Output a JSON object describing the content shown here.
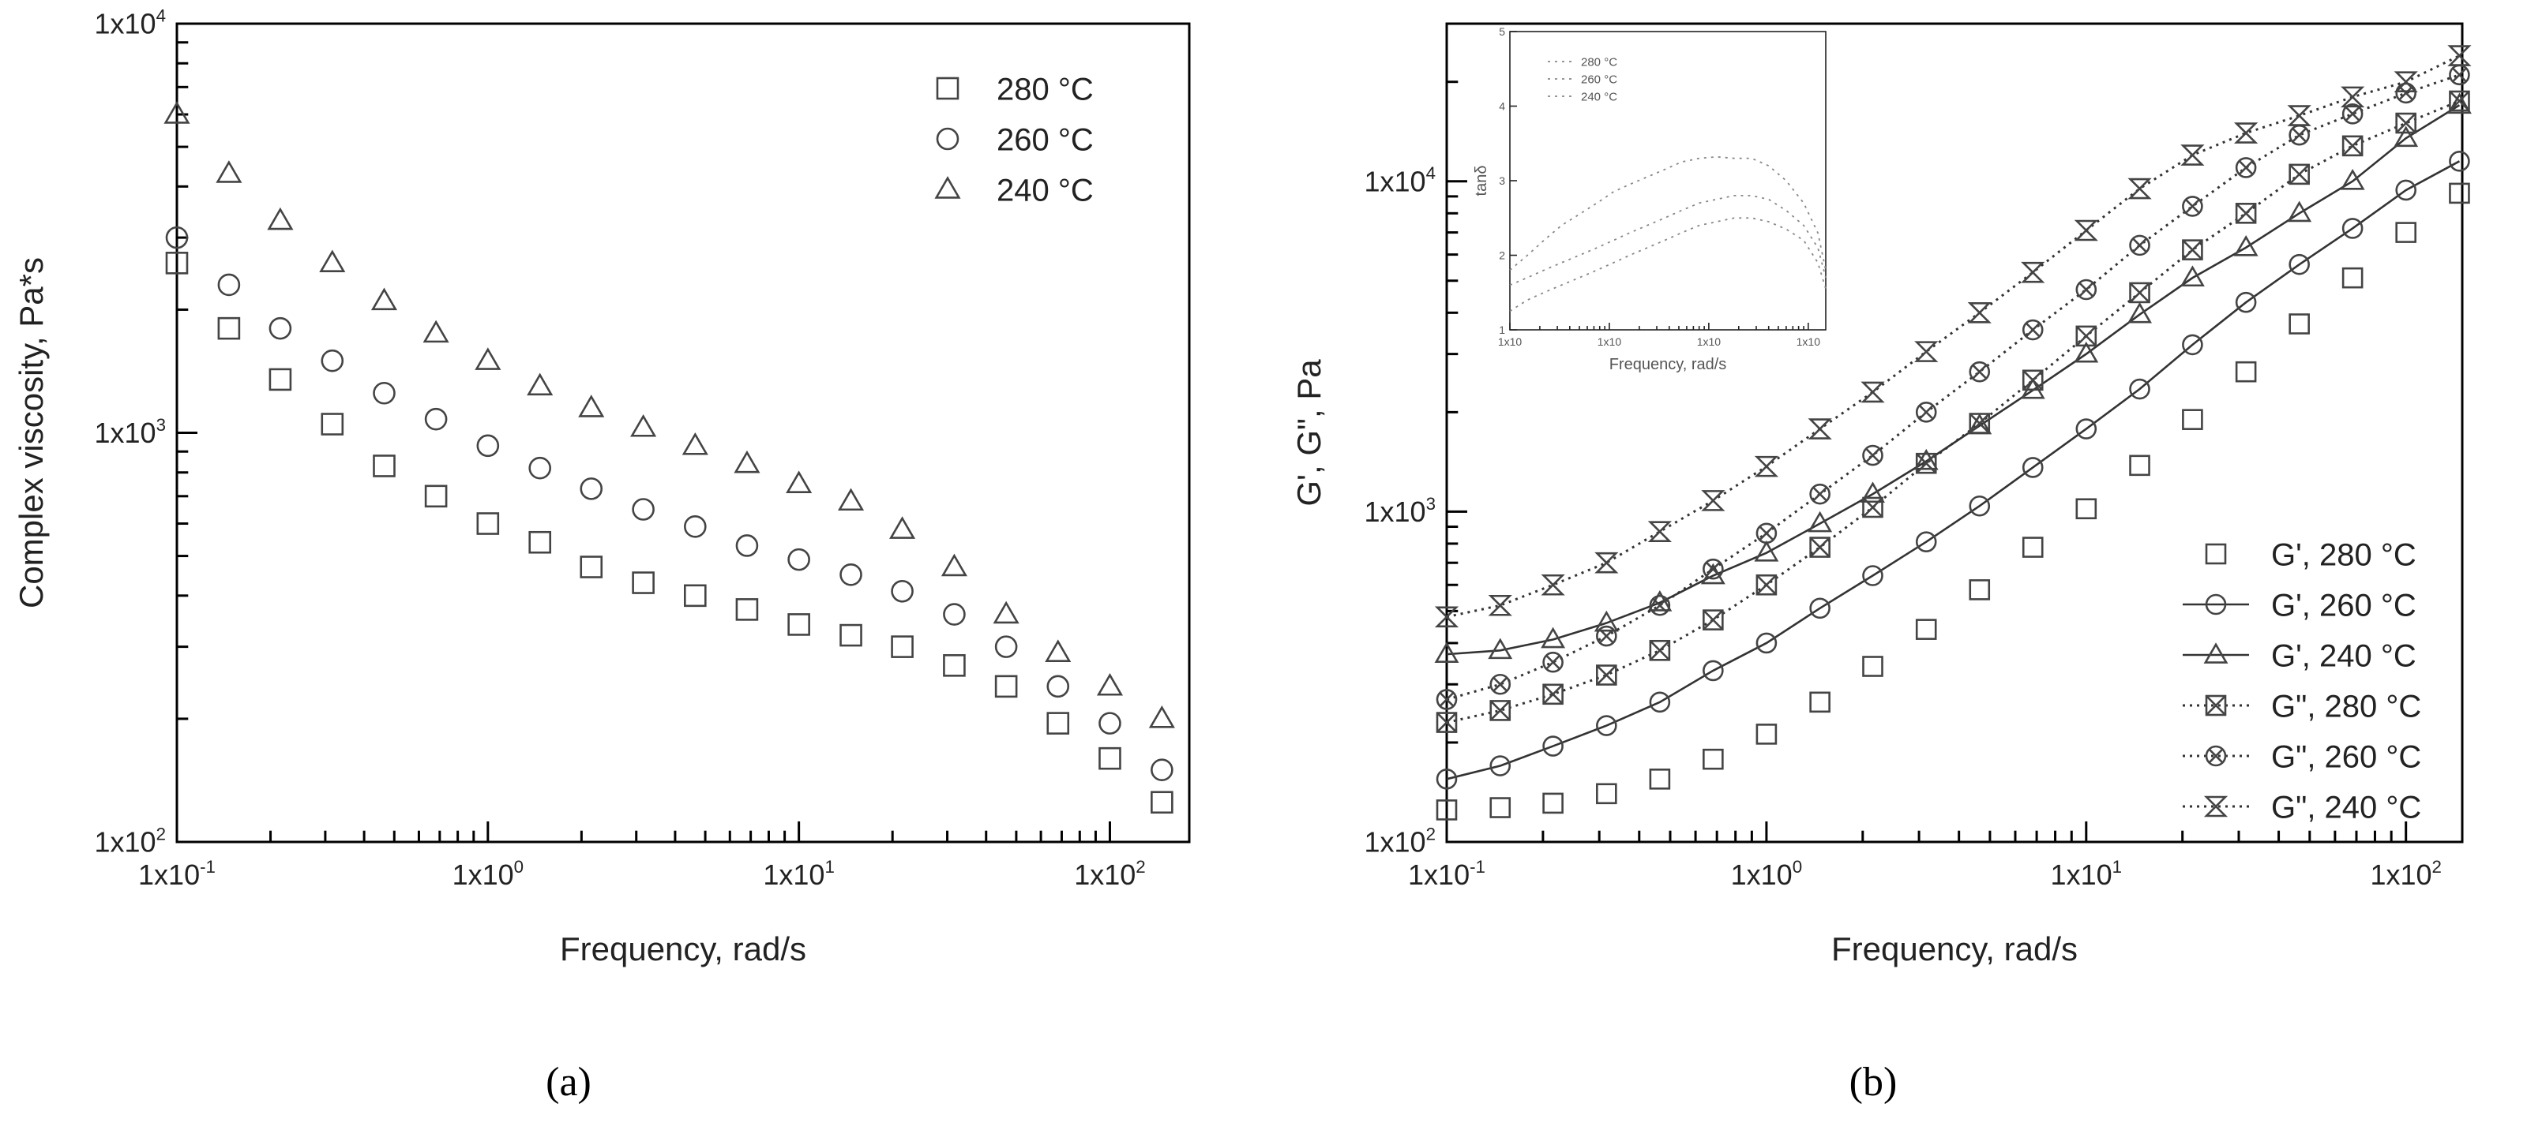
{
  "figure": {
    "panel_labels": [
      "(a)",
      "(b)"
    ]
  },
  "chart_data": [
    {
      "type": "scatter",
      "xlabel": "Frequency, rad/s",
      "ylabel": "Complex viscosity, Pa*s",
      "xscale": "log",
      "yscale": "log",
      "xlim": [
        0.1,
        180
      ],
      "ylim": [
        100,
        10000
      ],
      "xticks": [
        "1x10-1",
        "1x100",
        "1x101",
        "1x102"
      ],
      "yticks": [
        "1x102",
        "1x103",
        "1x104"
      ],
      "legend_position": "top-right",
      "x": [
        0.1,
        0.147,
        0.215,
        0.316,
        0.464,
        0.681,
        1.0,
        1.47,
        2.15,
        3.16,
        4.64,
        6.81,
        10.0,
        14.7,
        21.5,
        31.6,
        46.4,
        68.1,
        100,
        147
      ],
      "series": [
        {
          "name": "280 °C",
          "marker": "square",
          "values": [
            2600,
            1800,
            1350,
            1050,
            830,
            700,
            600,
            540,
            470,
            430,
            400,
            370,
            340,
            320,
            300,
            270,
            240,
            195,
            160,
            125
          ]
        },
        {
          "name": "260 °C",
          "marker": "circle",
          "values": [
            3000,
            2300,
            1800,
            1500,
            1250,
            1080,
            930,
            820,
            730,
            650,
            590,
            530,
            490,
            450,
            410,
            360,
            300,
            240,
            195,
            150
          ]
        },
        {
          "name": "240 °C",
          "marker": "triangle",
          "values": [
            6000,
            4300,
            3300,
            2600,
            2100,
            1750,
            1500,
            1300,
            1150,
            1030,
            930,
            840,
            750,
            680,
            580,
            470,
            360,
            290,
            240,
            200
          ]
        }
      ]
    },
    {
      "type": "line",
      "xlabel": "Frequency, rad/s",
      "ylabel": "G', G\", Pa",
      "xscale": "log",
      "yscale": "log",
      "xlim": [
        0.1,
        150
      ],
      "ylim": [
        100,
        30000
      ],
      "xticks": [
        "1x10-1",
        "1x100",
        "1x101",
        "1x102"
      ],
      "yticks": [
        "1x102",
        "1x103",
        "1x104"
      ],
      "legend_position": "bottom-right",
      "x": [
        0.1,
        0.147,
        0.215,
        0.316,
        0.464,
        0.681,
        1.0,
        1.47,
        2.15,
        3.16,
        4.64,
        6.81,
        10.0,
        14.7,
        21.5,
        31.6,
        46.4,
        68.1,
        100,
        147
      ],
      "series": [
        {
          "name": "G', 280 °C",
          "marker": "square",
          "line": "none",
          "values": [
            125,
            127,
            131,
            140,
            155,
            178,
            212,
            265,
            340,
            440,
            580,
            780,
            1020,
            1380,
            1900,
            2650,
            3700,
            5100,
            7000,
            9200
          ]
        },
        {
          "name": "G', 260 °C",
          "marker": "circle",
          "line": "solid",
          "values": [
            155,
            170,
            195,
            225,
            265,
            330,
            400,
            510,
            640,
            810,
            1040,
            1360,
            1780,
            2350,
            3200,
            4300,
            5600,
            7200,
            9400,
            11500
          ]
        },
        {
          "name": "G', 240 °C",
          "marker": "triangle",
          "line": "solid",
          "values": [
            370,
            380,
            410,
            460,
            530,
            640,
            750,
            920,
            1130,
            1420,
            1820,
            2330,
            3000,
            3950,
            5100,
            6300,
            8000,
            10000,
            13500,
            17000
          ]
        },
        {
          "name": "G\", 280 °C",
          "marker": "square-x",
          "line": "dotted",
          "values": [
            230,
            250,
            280,
            320,
            380,
            470,
            600,
            780,
            1030,
            1400,
            1850,
            2500,
            3400,
            4600,
            6200,
            8000,
            10500,
            12800,
            15000,
            17500
          ]
        },
        {
          "name": "G\", 260 °C",
          "marker": "circle-x",
          "line": "dotted",
          "values": [
            270,
            300,
            350,
            420,
            520,
            670,
            860,
            1130,
            1480,
            2000,
            2650,
            3550,
            4700,
            6400,
            8400,
            11000,
            13800,
            16000,
            18500,
            21000
          ]
        },
        {
          "name": "G\", 240 °C",
          "marker": "bowtie",
          "line": "dotted",
          "values": [
            480,
            520,
            600,
            700,
            870,
            1080,
            1370,
            1780,
            2300,
            3050,
            4000,
            5300,
            7100,
            9500,
            12000,
            14000,
            15800,
            18000,
            20000,
            24000
          ]
        }
      ]
    },
    {
      "type": "line",
      "xlabel": "Frequency, rad/s",
      "ylabel": "tanδ",
      "xscale": "log",
      "yscale": "linear",
      "xlim": [
        0.1,
        150
      ],
      "ylim": [
        1,
        5
      ],
      "xticks": [
        "1x10",
        "1x10",
        "1x10",
        "1x10"
      ],
      "yticks": [
        "1",
        "2",
        "3",
        "4",
        "5"
      ],
      "legend_position": "top-left",
      "x": [
        0.1,
        0.15,
        0.22,
        0.33,
        0.5,
        0.75,
        1.1,
        1.6,
        2.4,
        3.6,
        5.3,
        8,
        12,
        18,
        27,
        40,
        60,
        90,
        125,
        150
      ],
      "series": [
        {
          "name": "280 °C",
          "values": [
            1.8,
            2.0,
            2.2,
            2.4,
            2.55,
            2.7,
            2.85,
            2.95,
            3.05,
            3.15,
            3.25,
            3.3,
            3.32,
            3.3,
            3.3,
            3.2,
            3.0,
            2.7,
            2.3,
            1.8
          ]
        },
        {
          "name": "260 °C",
          "values": [
            1.6,
            1.7,
            1.8,
            1.9,
            2.0,
            2.1,
            2.2,
            2.3,
            2.4,
            2.5,
            2.6,
            2.7,
            2.75,
            2.8,
            2.8,
            2.75,
            2.6,
            2.4,
            2.1,
            1.7
          ]
        },
        {
          "name": "240 °C",
          "values": [
            1.25,
            1.4,
            1.5,
            1.6,
            1.7,
            1.8,
            1.9,
            2.0,
            2.1,
            2.2,
            2.3,
            2.4,
            2.45,
            2.5,
            2.5,
            2.45,
            2.35,
            2.2,
            1.9,
            1.55
          ]
        }
      ]
    }
  ]
}
